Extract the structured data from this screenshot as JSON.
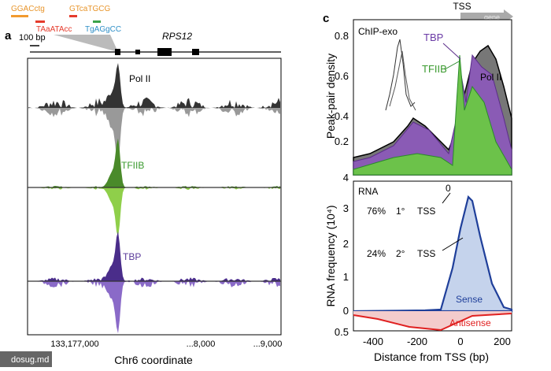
{
  "panel_a": {
    "label": "a",
    "sequences": [
      "GGACctg",
      "GTcaTGCG",
      "TAaATAcc",
      "TgAGgCC"
    ],
    "scale_bar": "100 bp",
    "gene": "RPS12",
    "tracks": [
      "Pol II",
      "TFIIB",
      "TBP"
    ],
    "x_ticks": [
      "133,177,000",
      "...8,000",
      "...9,000"
    ],
    "x_label": "Chr6 coordinate"
  },
  "panel_c": {
    "label": "c",
    "tss": "TSS",
    "gene": "gene",
    "top": {
      "y_label": "Peak-pair density",
      "y_ticks": [
        "0.8",
        "0.6",
        "0.4",
        "0.2",
        "4"
      ],
      "inset": "ChIP-exo",
      "series": [
        "TBP",
        "TFIIB",
        "Pol II"
      ]
    },
    "bottom": {
      "y_label": "RNA frequency (10⁴)",
      "y_ticks": [
        "3",
        "2",
        "1",
        "0",
        "0.5"
      ],
      "rna": "RNA",
      "primary": [
        "76%",
        "1°",
        "TSS"
      ],
      "zero": "0",
      "secondary": [
        "24%",
        "2°",
        "TSS"
      ],
      "sense": "Sense",
      "antisense": "Antisense"
    },
    "x_ticks": [
      "-400",
      "-200",
      "0",
      "200"
    ],
    "x_label": "Distance from TSS (bp)"
  },
  "watermark": "dosug.md"
}
